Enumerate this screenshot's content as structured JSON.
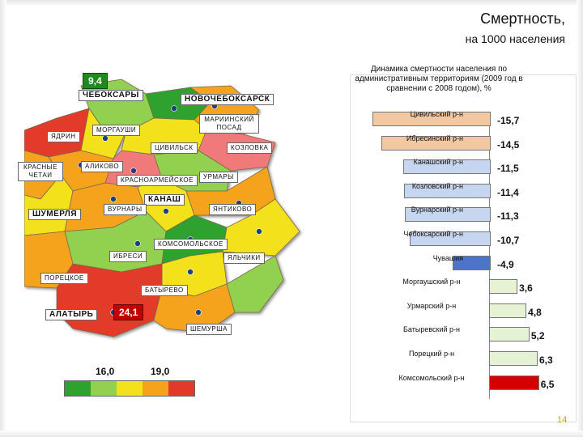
{
  "header": {
    "title": "Смертность,",
    "subtitle": "на 1000 населения"
  },
  "map": {
    "cities": {
      "cheboksary_value": "9,4",
      "cheboksary": "ЧЕБОКСАРЫ",
      "novocheboksarsk": "НОВОЧЕБОКСАРСК",
      "kanash": "КАНАШ",
      "shumerlya": "ШУМЕРЛЯ",
      "alatyr": "АЛАТЫРЬ",
      "alatyr_value": "24,1"
    },
    "districts": {
      "yadrin": "ЯДРИН",
      "morgaushi": "МОРГАУШИ",
      "mariinsky_posad": "МАРИИНСКИЙ ПОСАД",
      "tsivilsk": "ЦИВИЛЬСК",
      "kozlovka": "КОЗЛОВКА",
      "krasnye_chetai": "КРАСНЫЕ ЧЕТАИ",
      "alikovo": "АЛИКОВО",
      "krasnoarmeyskoe": "КРАСНОАРМЕЙСКОЕ",
      "urmary": "УРМАРЫ",
      "vurnary": "ВУРНАРЫ",
      "yantikovo": "ЯНТИКОВО",
      "komsomolskoe": "КОМСОМОЛЬСКОЕ",
      "ibresi": "ИБРЕСИ",
      "yalchiki": "ЯЛЬЧИКИ",
      "poretskoe": "ПОРЕЦКОЕ",
      "batyrevo": "БАТЫРЕВО",
      "shemursha": "ШЕМУРША"
    },
    "legend": {
      "min_label": "16,0",
      "max_label": "19,0"
    },
    "colors": {
      "green": "#2fa12f",
      "light_green": "#92d050",
      "yellow": "#f3e11c",
      "orange": "#f5a31a",
      "red": "#e23a2a",
      "pink": "#f07a7a"
    }
  },
  "chart_data": {
    "type": "bar",
    "title": "Динамика смертности населения по административным территориям (2009 год в сравнении с 2008 годом), %",
    "categories": [
      "Цивильский р-н",
      "Ибресинский р-н",
      "Канашский р-н",
      "Козловский р-н",
      "Вурнарский р-н",
      "Чебоксарский р-н",
      "Чувашия",
      "Моргаушский р-н",
      "Урмарский р-н",
      "Батыревский р-н",
      "Порецкий р-н",
      "Комсомольский р-н"
    ],
    "value_labels": [
      "-15,7",
      "-14,5",
      "-11,5",
      "-11,4",
      "-11,3",
      "-10,7",
      "-4,9",
      "3,6",
      "4,8",
      "5,2",
      "6,3",
      "6,5"
    ],
    "values": [
      -15.7,
      -14.5,
      -11.5,
      -11.4,
      -11.3,
      -10.7,
      -4.9,
      3.6,
      4.8,
      5.2,
      6.3,
      6.5
    ],
    "colors": [
      "#f2c8a2",
      "#f2c8a2",
      "#c6d6f0",
      "#c6d6f0",
      "#c6d6f0",
      "#c6d6f0",
      "#4c74c9",
      "#e6f2d4",
      "#e6f2d4",
      "#e6f2d4",
      "#e6f2d4",
      "#d40000"
    ],
    "xlim": [
      -16,
      7
    ],
    "orientation": "horizontal"
  },
  "footer": {
    "page_number": "14"
  }
}
